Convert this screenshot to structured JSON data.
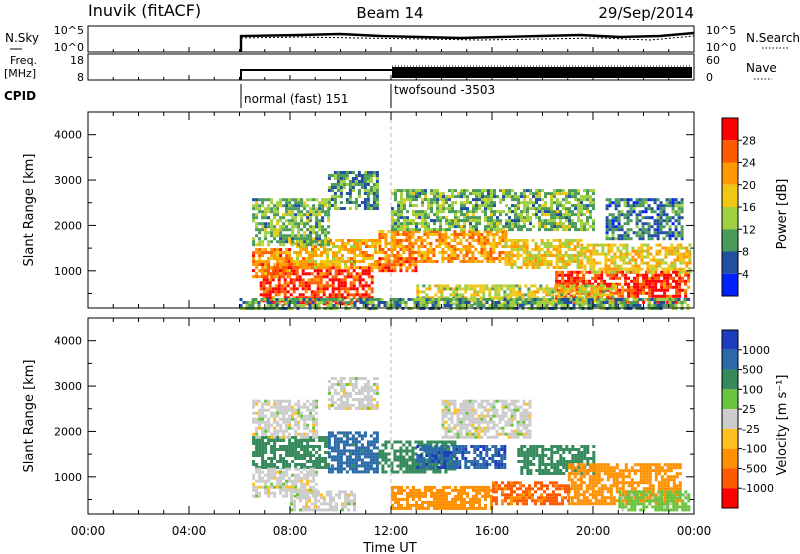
{
  "header": {
    "station": "Inuvik (fitACF)",
    "beam": "Beam 14",
    "date": "29/Sep/2014"
  },
  "status_panels": {
    "nsky": {
      "label": "N.Sky",
      "ticks": [
        "10^5",
        "10^0"
      ]
    },
    "nsearch": {
      "label": "N.Search",
      "ticks": [
        "10^5",
        "10^0"
      ]
    },
    "freq": {
      "label_top": "Freq.",
      "label_bottom": "[MHz]",
      "ticks": [
        "18",
        "8"
      ]
    },
    "nave": {
      "label": "Nave",
      "ticks": [
        "60",
        "0"
      ]
    },
    "cpid": {
      "label": "CPID",
      "segments": [
        {
          "text": "normal (fast) 151",
          "start_hour": 6
        },
        {
          "text": "twofsound -3503",
          "start_hour": 12
        }
      ]
    }
  },
  "colorbars": {
    "power": {
      "label": "Power [dB]",
      "ticks": [
        "28",
        "24",
        "20",
        "16",
        "12",
        "8",
        "4"
      ],
      "colors": [
        "#ff0000",
        "#ff5a00",
        "#ff9a00",
        "#f0c814",
        "#a0d040",
        "#4a9a5a",
        "#20509e",
        "#0020ff"
      ]
    },
    "velocity": {
      "label": "Velocity [m s⁻¹]",
      "ticks": [
        "1000",
        "500",
        "100",
        "25",
        "-25",
        "-100",
        "-500",
        "-1000"
      ],
      "colors": [
        "#1e3cbe",
        "#2a6aa8",
        "#348a5a",
        "#6ac43e",
        "#cccccc",
        "#ffc020",
        "#ff9000",
        "#ff5a00",
        "#ff0000"
      ]
    }
  },
  "chart_data": [
    {
      "type": "heatmap",
      "name": "power",
      "title": "Beam 14",
      "ylabel": "Slant Range [km]",
      "xlabel": "Time UT",
      "xlim": [
        0,
        24
      ],
      "ylim": [
        180,
        4500
      ],
      "x_tick_labels": [
        "00:00",
        "04:00",
        "08:00",
        "12:00",
        "16:00",
        "20:00",
        "00:00"
      ],
      "y_tick_labels": [
        "1000",
        "2000",
        "3000",
        "4000"
      ],
      "regions": [
        {
          "t0": 6.8,
          "t1": 11.3,
          "r0": 250,
          "r1": 1100,
          "value": 28
        },
        {
          "t0": 6.5,
          "t1": 8.0,
          "r0": 900,
          "r1": 1500,
          "value": 24
        },
        {
          "t0": 8.0,
          "t1": 11.5,
          "r0": 1100,
          "r1": 1700,
          "value": 20
        },
        {
          "t0": 11.5,
          "t1": 16.5,
          "r0": 1200,
          "r1": 1900,
          "value": 22
        },
        {
          "t0": 11.5,
          "t1": 13.0,
          "r0": 1000,
          "r1": 1300,
          "value": 26
        },
        {
          "t0": 16.5,
          "t1": 19.5,
          "r0": 1100,
          "r1": 1700,
          "value": 18
        },
        {
          "t0": 18.5,
          "t1": 23.8,
          "r0": 300,
          "r1": 1000,
          "value": 28
        },
        {
          "t0": 19.5,
          "t1": 23.8,
          "r0": 1000,
          "r1": 1600,
          "value": 18
        },
        {
          "t0": 6.5,
          "t1": 9.5,
          "r0": 1600,
          "r1": 2600,
          "value": 12
        },
        {
          "t0": 12.0,
          "t1": 20.0,
          "r0": 1900,
          "r1": 2800,
          "value": 12
        },
        {
          "t0": 9.5,
          "t1": 11.5,
          "r0": 2400,
          "r1": 3200,
          "value": 10
        },
        {
          "t0": 13.0,
          "t1": 21.0,
          "r0": 300,
          "r1": 700,
          "value": 16
        },
        {
          "t0": 20.5,
          "t1": 23.5,
          "r0": 1700,
          "r1": 2600,
          "value": 8
        },
        {
          "t0": 6.0,
          "t1": 23.8,
          "r0": 200,
          "r1": 400,
          "value": 10
        }
      ]
    },
    {
      "type": "heatmap",
      "name": "velocity",
      "ylabel": "Slant Range [km]",
      "xlabel": "Time UT",
      "xlim": [
        0,
        24
      ],
      "ylim": [
        180,
        4500
      ],
      "x_tick_labels": [
        "00:00",
        "04:00",
        "08:00",
        "12:00",
        "16:00",
        "20:00",
        "00:00"
      ],
      "y_tick_labels": [
        "1000",
        "2000",
        "3000",
        "4000"
      ],
      "regions": [
        {
          "t0": 6.5,
          "t1": 9.5,
          "r0": 1200,
          "r1": 1900,
          "value": 150
        },
        {
          "t0": 6.5,
          "t1": 9.0,
          "r0": 600,
          "r1": 1200,
          "value": 0
        },
        {
          "t0": 8.0,
          "t1": 10.5,
          "r0": 300,
          "r1": 700,
          "value": 0
        },
        {
          "t0": 9.5,
          "t1": 11.5,
          "r0": 1100,
          "r1": 2000,
          "value": 700
        },
        {
          "t0": 11.5,
          "t1": 14.5,
          "r0": 1100,
          "r1": 1800,
          "value": 150
        },
        {
          "t0": 13.0,
          "t1": 16.5,
          "r0": 1200,
          "r1": 1700,
          "value": 900
        },
        {
          "t0": 14.0,
          "t1": 17.5,
          "r0": 1900,
          "r1": 2700,
          "value": 0
        },
        {
          "t0": 17.0,
          "t1": 20.0,
          "r0": 1100,
          "r1": 1700,
          "value": 150
        },
        {
          "t0": 19.0,
          "t1": 23.5,
          "r0": 400,
          "r1": 1300,
          "value": -300
        },
        {
          "t0": 21.0,
          "t1": 23.8,
          "r0": 250,
          "r1": 700,
          "value": 50
        },
        {
          "t0": 6.5,
          "t1": 9.0,
          "r0": 1900,
          "r1": 2700,
          "value": 0
        },
        {
          "t0": 9.5,
          "t1": 11.5,
          "r0": 2500,
          "r1": 3200,
          "value": 0
        },
        {
          "t0": 12.0,
          "t1": 16.0,
          "r0": 300,
          "r1": 800,
          "value": -150
        },
        {
          "t0": 16.0,
          "t1": 19.0,
          "r0": 400,
          "r1": 900,
          "value": -600
        }
      ]
    }
  ]
}
